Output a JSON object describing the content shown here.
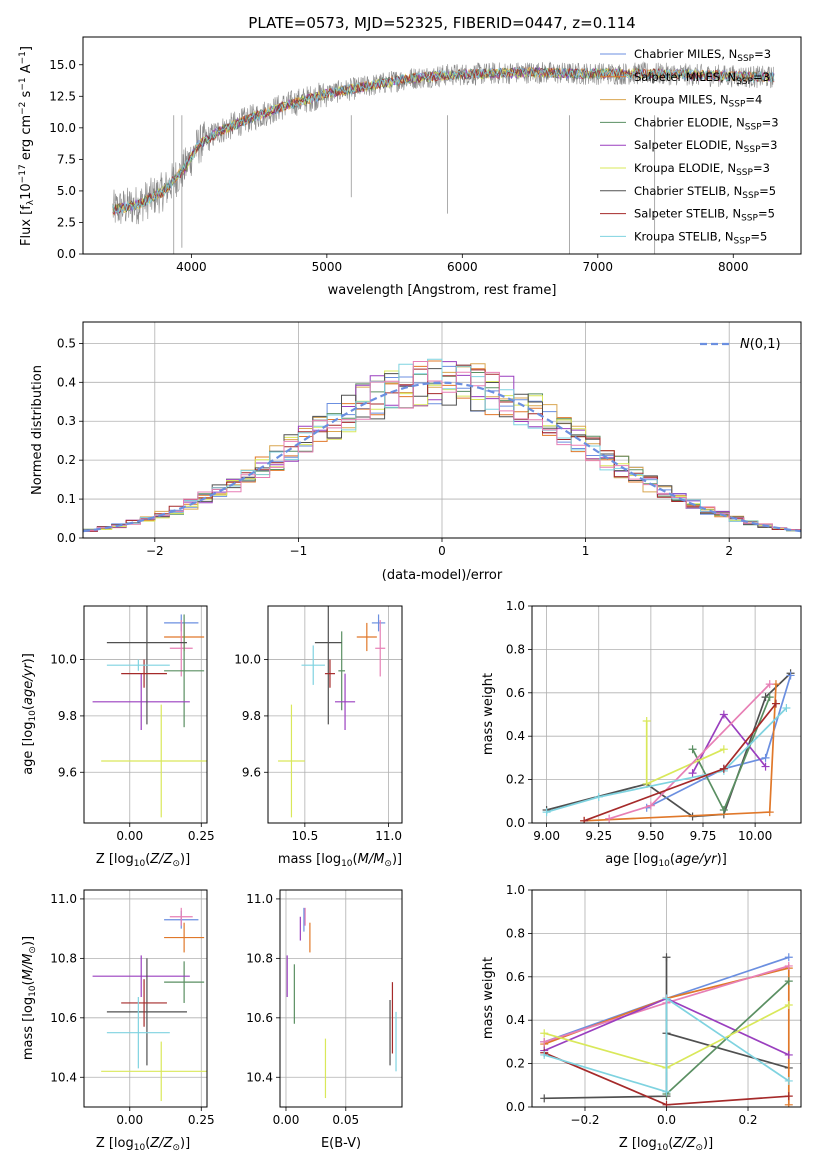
{
  "colors": {
    "blue": "#6b8fe0",
    "orange": "#e0782a",
    "gold": "#d9a650",
    "green": "#5a8f62",
    "purple": "#9a3fbf",
    "yellow": "#d9e85a",
    "dark": "#505050",
    "red": "#a52a2a",
    "cyan": "#7fd3e0",
    "pink": "#e77fb5",
    "spectrum": "#888888",
    "normal": "#6b8fe0"
  },
  "chart_data": [
    {
      "id": "spectrum",
      "type": "line",
      "title": "PLATE=0573, MJD=52325, FIBERID=0447, z=0.114",
      "xlabel": "wavelength [Angstrom, rest frame]",
      "ylabel_parts": [
        "Flux [f",
        "λ",
        "10",
        "−17",
        " erg cm",
        "−2",
        " s",
        "−1",
        " A",
        "−1",
        "]"
      ],
      "xlim": [
        3200,
        8500
      ],
      "ylim": [
        0,
        17.2
      ],
      "x_ticks": [
        4000,
        5000,
        6000,
        7000,
        8000
      ],
      "y_ticks": [
        0.0,
        2.5,
        5.0,
        7.5,
        10.0,
        12.5,
        15.0
      ],
      "legend_position": "right",
      "continuum": {
        "x": [
          3420,
          3600,
          3800,
          3950,
          4050,
          4200,
          4400,
          4700,
          5000,
          5300,
          5600,
          5900,
          6200,
          6500,
          6800,
          7100,
          7400,
          7700,
          8000,
          8300
        ],
        "y": [
          3.5,
          3.9,
          5.0,
          6.8,
          8.6,
          9.7,
          10.6,
          11.8,
          12.7,
          13.3,
          13.9,
          14.2,
          14.3,
          14.4,
          14.3,
          14.3,
          14.3,
          14.2,
          14.1,
          14.0
        ]
      },
      "series": [
        {
          "name": "Chabrier MILES, N_SSP=3",
          "prefix": "Chabrier MILES, N",
          "sub": "SSP",
          "suffix": "=3",
          "color": "blue"
        },
        {
          "name": "Salpeter MILES, N_SSP=3",
          "prefix": "Salpeter MILES, N",
          "sub": "SSP",
          "suffix": "=3",
          "color": "orange"
        },
        {
          "name": "Kroupa MILES, N_SSP=4",
          "prefix": "Kroupa MILES, N",
          "sub": "SSP",
          "suffix": "=4",
          "color": "gold"
        },
        {
          "name": "Chabrier ELODIE, N_SSP=3",
          "prefix": "Chabrier ELODIE, N",
          "sub": "SSP",
          "suffix": "=3",
          "color": "green"
        },
        {
          "name": "Salpeter ELODIE, N_SSP=3",
          "prefix": "Salpeter ELODIE, N",
          "sub": "SSP",
          "suffix": "=3",
          "color": "purple"
        },
        {
          "name": "Kroupa ELODIE, N_SSP=3",
          "prefix": "Kroupa ELODIE, N",
          "sub": "SSP",
          "suffix": "=3",
          "color": "yellow"
        },
        {
          "name": "Chabrier STELIB, N_SSP=5",
          "prefix": "Chabrier STELIB, N",
          "sub": "SSP",
          "suffix": "=5",
          "color": "dark"
        },
        {
          "name": "Salpeter STELIB, N_SSP=5",
          "prefix": "Salpeter STELIB, N",
          "sub": "SSP",
          "suffix": "=5",
          "color": "red"
        },
        {
          "name": "Kroupa STELIB, N_SSP=5",
          "prefix": "Kroupa STELIB, N",
          "sub": "SSP",
          "suffix": "=5",
          "color": "cyan"
        }
      ]
    },
    {
      "id": "residuals",
      "type": "bar",
      "xlabel": "(data-model)/error",
      "ylabel": "Normed distribution",
      "xlim": [
        -2.5,
        2.5
      ],
      "ylim": [
        0,
        0.555
      ],
      "x_ticks": [
        -2,
        -1,
        0,
        1,
        2
      ],
      "x_tick_labels": [
        "−2",
        "−1",
        "0",
        "1",
        "2"
      ],
      "y_ticks": [
        0.0,
        0.1,
        0.2,
        0.3,
        0.4,
        0.5
      ],
      "bin_width": 0.1,
      "legend_position": "top-right",
      "normal_curve": {
        "label": "N(0,1)",
        "mean": 0,
        "sigma": 1
      },
      "series_colors": [
        "blue",
        "orange",
        "gold",
        "green",
        "purple",
        "yellow",
        "dark",
        "red",
        "cyan",
        "pink"
      ]
    },
    {
      "id": "age-vs-Z",
      "type": "scatter",
      "xlabel": "Z [log10(Z/Z⊙)]",
      "ylabel": "age [log10(age/yr)]",
      "xlim": [
        -0.16,
        0.27
      ],
      "ylim": [
        9.42,
        10.19
      ],
      "x_ticks": [
        0.0,
        0.25
      ],
      "y_ticks": [
        9.6,
        9.8,
        10.0
      ],
      "points": [
        {
          "color": "blue",
          "x": 0.18,
          "y": 10.13,
          "xerr": 0.06,
          "yerr": 0.03
        },
        {
          "color": "orange",
          "x": 0.19,
          "y": 10.08,
          "xerr": 0.07,
          "yerr": 0.05
        },
        {
          "color": "pink",
          "x": 0.18,
          "y": 10.04,
          "xerr": 0.04,
          "yerr": 0.1
        },
        {
          "color": "green",
          "x": 0.19,
          "y": 9.96,
          "xerr": 0.07,
          "yerr": 0.2
        },
        {
          "color": "purple",
          "x": 0.04,
          "y": 9.85,
          "xerr": 0.17,
          "yerr": 0.1
        },
        {
          "color": "yellow",
          "x": 0.11,
          "y": 9.64,
          "xerr": 0.21,
          "yerr": 0.2
        },
        {
          "color": "dark",
          "x": 0.06,
          "y": 10.06,
          "xerr": 0.14,
          "yerr": 0.29
        },
        {
          "color": "red",
          "x": 0.05,
          "y": 9.95,
          "xerr": 0.08,
          "yerr": 0.05
        },
        {
          "color": "cyan",
          "x": 0.03,
          "y": 9.98,
          "xerr": 0.11,
          "yerr": 0.02
        }
      ]
    },
    {
      "id": "age-vs-mass",
      "type": "scatter",
      "xlabel": "mass [log10(M/M⊙)]",
      "xlim": [
        10.28,
        11.08
      ],
      "ylim": [
        9.42,
        10.19
      ],
      "x_ticks": [
        10.5,
        11.0
      ],
      "y_ticks": [
        9.6,
        9.8,
        10.0
      ],
      "points": [
        {
          "color": "blue",
          "x": 10.94,
          "y": 10.13,
          "xerr": 0.04,
          "yerr": 0.03
        },
        {
          "color": "orange",
          "x": 10.87,
          "y": 10.08,
          "xerr": 0.06,
          "yerr": 0.05
        },
        {
          "color": "pink",
          "x": 10.95,
          "y": 10.04,
          "xerr": 0.03,
          "yerr": 0.1
        },
        {
          "color": "green",
          "x": 10.72,
          "y": 9.96,
          "xerr": 0.02,
          "yerr": 0.14
        },
        {
          "color": "purple",
          "x": 10.74,
          "y": 9.85,
          "xerr": 0.06,
          "yerr": 0.1
        },
        {
          "color": "yellow",
          "x": 10.42,
          "y": 9.64,
          "xerr": 0.08,
          "yerr": 0.2
        },
        {
          "color": "dark",
          "x": 10.64,
          "y": 10.06,
          "xerr": 0.08,
          "yerr": 0.29
        },
        {
          "color": "red",
          "x": 10.65,
          "y": 9.95,
          "xerr": 0.03,
          "yerr": 0.05
        },
        {
          "color": "cyan",
          "x": 10.55,
          "y": 9.98,
          "xerr": 0.07,
          "yerr": 0.07
        }
      ]
    },
    {
      "id": "weight-vs-age",
      "type": "line",
      "xlabel": "age [log10(age/yr)]",
      "ylabel": "mass weight",
      "xlim": [
        8.93,
        10.22
      ],
      "ylim": [
        0,
        1.0
      ],
      "x_ticks": [
        9.0,
        9.25,
        9.5,
        9.75,
        10.0
      ],
      "y_ticks": [
        0.0,
        0.2,
        0.4,
        0.6,
        0.8,
        1.0
      ],
      "series": [
        {
          "color": "dark",
          "x": [
            9.0,
            9.48,
            9.7,
            9.85,
            10.05,
            10.17
          ],
          "y": [
            0.06,
            0.18,
            0.03,
            0.04,
            0.58,
            0.69
          ]
        },
        {
          "color": "blue",
          "x": [
            9.48,
            9.85,
            10.05,
            10.17
          ],
          "y": [
            0.07,
            0.25,
            0.3,
            0.68
          ]
        },
        {
          "color": "orange",
          "x": [
            9.18,
            10.07,
            10.1
          ],
          "y": [
            0.01,
            0.05,
            0.64
          ]
        },
        {
          "color": "purple",
          "x": [
            9.7,
            9.85,
            10.05
          ],
          "y": [
            0.23,
            0.5,
            0.26
          ]
        },
        {
          "color": "green",
          "x": [
            9.7,
            9.85,
            10.07
          ],
          "y": [
            0.34,
            0.06,
            0.58
          ]
        },
        {
          "color": "yellow",
          "x": [
            9.48,
            9.48,
            9.85
          ],
          "y": [
            0.47,
            0.18,
            0.34
          ]
        },
        {
          "color": "pink",
          "x": [
            9.3,
            9.5,
            10.07
          ],
          "y": [
            0.02,
            0.08,
            0.64
          ]
        },
        {
          "color": "cyan",
          "x": [
            9.0,
            9.25,
            9.85,
            10.15
          ],
          "y": [
            0.05,
            0.12,
            0.24,
            0.53
          ]
        },
        {
          "color": "red",
          "x": [
            9.18,
            9.85,
            10.1
          ],
          "y": [
            0.01,
            0.25,
            0.55
          ]
        }
      ]
    },
    {
      "id": "mass-vs-Z",
      "type": "scatter",
      "xlabel": "Z [log10(Z/Z⊙)]",
      "ylabel": "mass [log10(M/M⊙)]",
      "xlim": [
        -0.16,
        0.27
      ],
      "ylim": [
        10.3,
        11.03
      ],
      "x_ticks": [
        0.0,
        0.25
      ],
      "y_ticks": [
        10.4,
        10.6,
        10.8,
        11.0
      ],
      "points": [
        {
          "color": "blue",
          "x": 0.18,
          "y": 10.93,
          "xerr": 0.06,
          "yerr": 0.03
        },
        {
          "color": "orange",
          "x": 0.19,
          "y": 10.87,
          "xerr": 0.07,
          "yerr": 0.05
        },
        {
          "color": "pink",
          "x": 0.18,
          "y": 10.94,
          "xerr": 0.04,
          "yerr": 0.03
        },
        {
          "color": "green",
          "x": 0.19,
          "y": 10.72,
          "xerr": 0.07,
          "yerr": 0.07
        },
        {
          "color": "purple",
          "x": 0.04,
          "y": 10.74,
          "xerr": 0.17,
          "yerr": 0.07
        },
        {
          "color": "yellow",
          "x": 0.11,
          "y": 10.42,
          "xerr": 0.21,
          "yerr": 0.1
        },
        {
          "color": "dark",
          "x": 0.06,
          "y": 10.62,
          "xerr": 0.14,
          "yerr": 0.18
        },
        {
          "color": "red",
          "x": 0.05,
          "y": 10.65,
          "xerr": 0.08,
          "yerr": 0.08
        },
        {
          "color": "cyan",
          "x": 0.03,
          "y": 10.55,
          "xerr": 0.11,
          "yerr": 0.12
        }
      ]
    },
    {
      "id": "mass-vs-EBV",
      "type": "scatter",
      "xlabel": "E(B-V)",
      "xlim": [
        -0.005,
        0.097
      ],
      "ylim": [
        10.3,
        11.03
      ],
      "x_ticks": [
        0.0,
        0.05
      ],
      "y_ticks": [
        10.4,
        10.6,
        10.8,
        11.0
      ],
      "points": [
        {
          "color": "blue",
          "x": 0.015,
          "y": 10.93,
          "yerr": 0.04
        },
        {
          "color": "orange",
          "x": 0.02,
          "y": 10.87,
          "yerr": 0.05
        },
        {
          "color": "pink",
          "x": 0.016,
          "y": 10.94,
          "yerr": 0.03
        },
        {
          "color": "purple",
          "x": 0.012,
          "y": 10.9,
          "yerr": 0.04
        },
        {
          "color": "green",
          "x": 0.007,
          "y": 10.68,
          "yerr": 0.1
        },
        {
          "color": "purple",
          "x": 0.001,
          "y": 10.74,
          "yerr": 0.07
        },
        {
          "color": "yellow",
          "x": 0.033,
          "y": 10.43,
          "yerr": 0.1
        },
        {
          "color": "dark",
          "x": 0.087,
          "y": 10.55,
          "yerr": 0.11
        },
        {
          "color": "red",
          "x": 0.089,
          "y": 10.6,
          "yerr": 0.12
        },
        {
          "color": "cyan",
          "x": 0.092,
          "y": 10.52,
          "yerr": 0.1
        }
      ]
    },
    {
      "id": "weight-vs-Z",
      "type": "line",
      "xlabel": "Z [log10(Z/Z⊙)]",
      "ylabel": "mass weight",
      "xlim": [
        -0.33,
        0.33
      ],
      "ylim": [
        0,
        1.0
      ],
      "x_ticks": [
        -0.2,
        0.0,
        0.2
      ],
      "x_tick_labels": [
        "−0.2",
        "0.0",
        "0.2"
      ],
      "y_ticks": [
        0.0,
        0.2,
        0.4,
        0.6,
        0.8,
        1.0
      ],
      "series": [
        {
          "color": "dark",
          "x": [
            -0.3,
            0.0,
            0.0,
            0.0,
            0.3
          ],
          "y": [
            0.04,
            0.05,
            0.69,
            0.34,
            0.18
          ]
        },
        {
          "color": "blue",
          "x": [
            -0.3,
            0.0,
            0.3
          ],
          "y": [
            0.3,
            0.5,
            0.69
          ]
        },
        {
          "color": "orange",
          "x": [
            -0.3,
            0.0,
            0.3,
            0.3
          ],
          "y": [
            0.29,
            0.5,
            0.64,
            0.01
          ]
        },
        {
          "color": "pink",
          "x": [
            -0.3,
            0.0,
            0.3
          ],
          "y": [
            0.3,
            0.48,
            0.65
          ]
        },
        {
          "color": "purple",
          "x": [
            -0.3,
            0.0,
            0.3
          ],
          "y": [
            0.26,
            0.5,
            0.24
          ]
        },
        {
          "color": "green",
          "x": [
            0.0,
            0.3
          ],
          "y": [
            0.06,
            0.58
          ]
        },
        {
          "color": "yellow",
          "x": [
            -0.3,
            0.0,
            0.3
          ],
          "y": [
            0.34,
            0.18,
            0.47
          ]
        },
        {
          "color": "red",
          "x": [
            -0.3,
            0.0,
            0.3
          ],
          "y": [
            0.25,
            0.01,
            0.05
          ]
        },
        {
          "color": "cyan",
          "x": [
            -0.3,
            0.0,
            0.0,
            0.3
          ],
          "y": [
            0.24,
            0.07,
            0.5,
            0.12
          ]
        }
      ]
    }
  ]
}
